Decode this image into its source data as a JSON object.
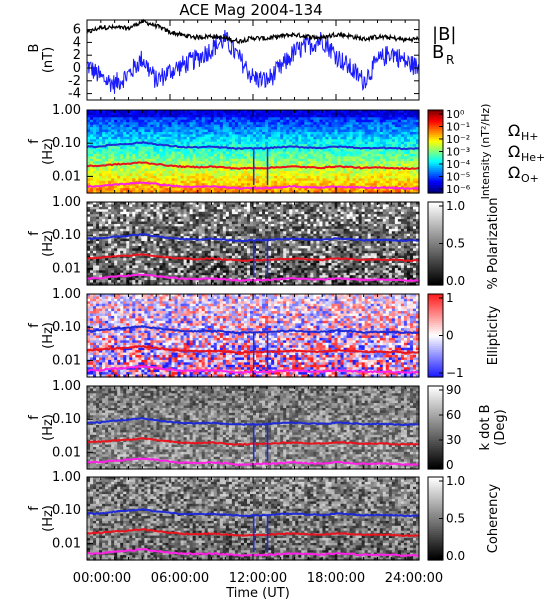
{
  "title": "ACE Mag 2004-134",
  "time_axis": {
    "label": "Time (UT)",
    "ticks": [
      "00:00:00",
      "06:00:00",
      "12:00:00",
      "18:00:00",
      "24:00:00"
    ]
  },
  "colors": {
    "B": "#000000",
    "BR": "#1a1aff",
    "OH": "#1f2bd6",
    "OHe": "#e8141e",
    "OO": "#ff22e6"
  },
  "chart_data": [
    {
      "type": "line",
      "panel": "field",
      "ylabel": [
        "B",
        "(nT)"
      ],
      "yticks": [
        "6",
        "4",
        "2",
        "0",
        "-2",
        "-4"
      ],
      "ylim": [
        -5,
        7.5
      ],
      "legend": {
        "B": "|B|",
        "BR": "B",
        "BR_sub": "R"
      },
      "x_hours": [
        0,
        1,
        2,
        3,
        4,
        5,
        6,
        7,
        8,
        9,
        10,
        11,
        12,
        13,
        14,
        15,
        16,
        17,
        18,
        19,
        20,
        21,
        22,
        23,
        24
      ],
      "series": [
        {
          "name": "|B|",
          "values": [
            5.5,
            6.4,
            6.3,
            6.2,
            7.3,
            6.6,
            5.6,
            5.1,
            4.8,
            5.0,
            4.6,
            4.2,
            4.7,
            4.6,
            5.0,
            5.2,
            4.9,
            4.7,
            5.3,
            5.0,
            4.5,
            4.9,
            4.7,
            4.4,
            4.6
          ]
        },
        {
          "name": "BR",
          "values": [
            0.5,
            -1.5,
            -2.5,
            -1.0,
            1.5,
            -2.0,
            -0.5,
            0.5,
            1.5,
            3.0,
            4.5,
            1.5,
            -1.5,
            -2.0,
            0.0,
            2.5,
            3.5,
            4.5,
            2.0,
            0.0,
            -2.0,
            1.0,
            2.5,
            1.0,
            0.0
          ]
        }
      ]
    },
    {
      "type": "heatmap",
      "panel": "intensity",
      "ylabel": [
        "f",
        "(Hz)"
      ],
      "yticks": [
        "1.00",
        "0.10",
        "0.01"
      ],
      "colorbar": {
        "label": "Intensity (nT²/Hz)",
        "ticks": [
          "10⁰",
          "10⁻¹",
          "10⁻²",
          "10⁻³",
          "10⁻⁴",
          "10⁻⁵",
          "10⁻⁶"
        ]
      },
      "legend": {
        "OH": "Ω",
        "OH_sub": "H+",
        "OHe": "Ω",
        "OHe_sub": "He+",
        "OO": "Ω",
        "OO_sub": "O+"
      }
    },
    {
      "type": "heatmap",
      "panel": "polarization",
      "ylabel": [
        "f",
        "(Hz)"
      ],
      "yticks": [
        "1.00",
        "0.10",
        "0.01"
      ],
      "colorbar": {
        "label": "% Polarization",
        "ticks": [
          "1.0",
          "0.5",
          "0.0"
        ]
      }
    },
    {
      "type": "heatmap",
      "panel": "ellipticity",
      "ylabel": [
        "f",
        "(Hz)"
      ],
      "yticks": [
        "1.00",
        "0.10",
        "0.01"
      ],
      "colorbar": {
        "label": "Ellipticity",
        "ticks": [
          "1",
          "0",
          "−1"
        ]
      }
    },
    {
      "type": "heatmap",
      "panel": "kdotb",
      "ylabel": [
        "f",
        "(Hz)"
      ],
      "yticks": [
        "1.00",
        "0.10",
        "0.01"
      ],
      "colorbar": {
        "label": "k dot B",
        "label2": "(Deg)",
        "ticks": [
          "90",
          "60",
          "30",
          "0"
        ]
      }
    },
    {
      "type": "heatmap",
      "panel": "coherency",
      "ylabel": [
        "f",
        "(Hz)"
      ],
      "yticks": [
        "1.00",
        "0.10",
        "0.01"
      ],
      "colorbar": {
        "label": "Coherency",
        "ticks": [
          "1.0",
          "0.5",
          "0.0"
        ]
      }
    }
  ],
  "gyro_lines": {
    "x_hours": [
      0,
      1,
      2,
      3,
      4,
      5,
      6,
      7,
      8,
      9,
      10,
      11,
      12,
      13,
      14,
      15,
      16,
      17,
      18,
      19,
      20,
      21,
      22,
      23,
      24
    ],
    "H_hz": [
      0.078,
      0.08,
      0.091,
      0.096,
      0.106,
      0.093,
      0.083,
      0.076,
      0.075,
      0.078,
      0.073,
      0.068,
      0.07,
      0.071,
      0.076,
      0.078,
      0.074,
      0.072,
      0.079,
      0.076,
      0.07,
      0.073,
      0.071,
      0.068,
      0.07
    ],
    "He_hz": [
      0.0205,
      0.021,
      0.023,
      0.024,
      0.0265,
      0.0235,
      0.021,
      0.0195,
      0.019,
      0.0198,
      0.0185,
      0.0172,
      0.018,
      0.0178,
      0.0192,
      0.0198,
      0.0188,
      0.0183,
      0.02,
      0.0192,
      0.0178,
      0.0185,
      0.018,
      0.0172,
      0.0176
    ],
    "O_hz": [
      0.005,
      0.0051,
      0.0057,
      0.006,
      0.0066,
      0.0059,
      0.0053,
      0.0049,
      0.0048,
      0.005,
      0.0047,
      0.0043,
      0.0045,
      0.0045,
      0.0048,
      0.005,
      0.0047,
      0.0046,
      0.005,
      0.0048,
      0.0045,
      0.0046,
      0.0045,
      0.0043,
      0.0044
    ]
  }
}
